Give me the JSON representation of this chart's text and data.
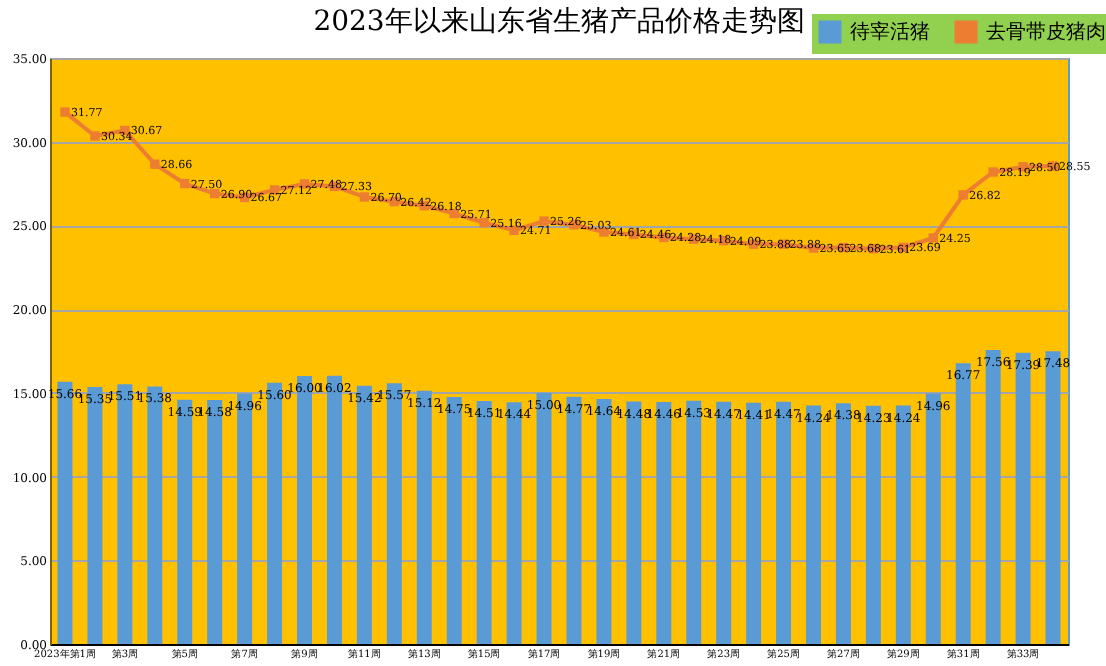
{
  "chart_data": {
    "type": "bar",
    "title": "2023年以来山东省生猪产品价格走势图",
    "categories": [
      "2023年第1周",
      null,
      "第3周",
      null,
      "第5周",
      null,
      "第7周",
      null,
      "第9周",
      null,
      "第11周",
      null,
      "第13周",
      null,
      "第15周",
      null,
      "第17周",
      null,
      "第19周",
      null,
      "第21周",
      null,
      "第23周",
      null,
      "第25周",
      null,
      "第27周",
      null,
      "第29周",
      null,
      "第31周",
      null,
      "第33周",
      null
    ],
    "series": [
      {
        "name": "待宰活猪",
        "color": "#5b9bd5",
        "values": [
          15.66,
          15.35,
          15.51,
          15.38,
          14.59,
          14.58,
          14.96,
          15.6,
          16.0,
          16.02,
          15.42,
          15.57,
          15.12,
          14.75,
          14.51,
          14.44,
          15.0,
          14.77,
          14.64,
          14.48,
          14.46,
          14.53,
          14.47,
          14.41,
          14.47,
          14.24,
          14.38,
          14.23,
          14.24,
          14.96,
          16.77,
          17.56,
          17.39,
          17.48
        ],
        "value_labels": [
          "15.66",
          "15.35",
          "15.51",
          "15.38",
          "14.59",
          "14.58",
          "14.96",
          "15.60",
          "16.00",
          "16.02",
          "15.42",
          "15.57",
          "15.12",
          "14.75",
          "14.51",
          "14.44",
          "15.00",
          "14.77",
          "14.64",
          "14.48",
          "14.46",
          "14.53",
          "14.47",
          "14.41",
          "14.47",
          "14.24",
          "14.38",
          "14.23",
          "14.24",
          "14.96",
          "16.77",
          "17.56",
          "17.39",
          "17.48"
        ]
      },
      {
        "name": "去骨带皮猪肉",
        "type": "line",
        "color": "#ed7d31",
        "marker": "square",
        "values": [
          31.77,
          30.34,
          30.67,
          28.66,
          27.5,
          26.9,
          26.67,
          27.12,
          27.48,
          27.33,
          26.7,
          26.42,
          26.18,
          25.71,
          25.16,
          24.71,
          25.26,
          25.03,
          24.61,
          24.46,
          24.28,
          24.18,
          24.09,
          23.88,
          23.88,
          23.65,
          23.68,
          23.61,
          23.69,
          24.25,
          26.82,
          28.19,
          28.5,
          28.55
        ],
        "value_labels": [
          "31.77",
          "30.34",
          "30.67",
          "28.66",
          "27.50",
          "26.90",
          "26.67",
          "27.12",
          "27.48",
          "27.33",
          "26.70",
          "26.42",
          "26.18",
          "25.71",
          "25.16",
          "24.71",
          "25.26",
          "25.03",
          "24.61",
          "24.46",
          "24.28",
          "24.18",
          "24.09",
          "23.88",
          "23.88",
          "23.65",
          "23.68",
          "23.61",
          "23.69",
          "24.25",
          "26.82",
          "28.19",
          "28.50",
          "28.55"
        ]
      }
    ],
    "ylim": [
      0,
      35
    ],
    "yticks": [
      {
        "value": 0,
        "label": "0.00"
      },
      {
        "value": 5,
        "label": "5.00"
      },
      {
        "value": 10,
        "label": "10.00"
      },
      {
        "value": 15,
        "label": "15.00"
      },
      {
        "value": 20,
        "label": "20.00"
      },
      {
        "value": 25,
        "label": "25.00"
      },
      {
        "value": 30,
        "label": "30.00"
      },
      {
        "value": 35,
        "label": "35.00"
      }
    ],
    "grid": "y",
    "legend": "top right"
  }
}
